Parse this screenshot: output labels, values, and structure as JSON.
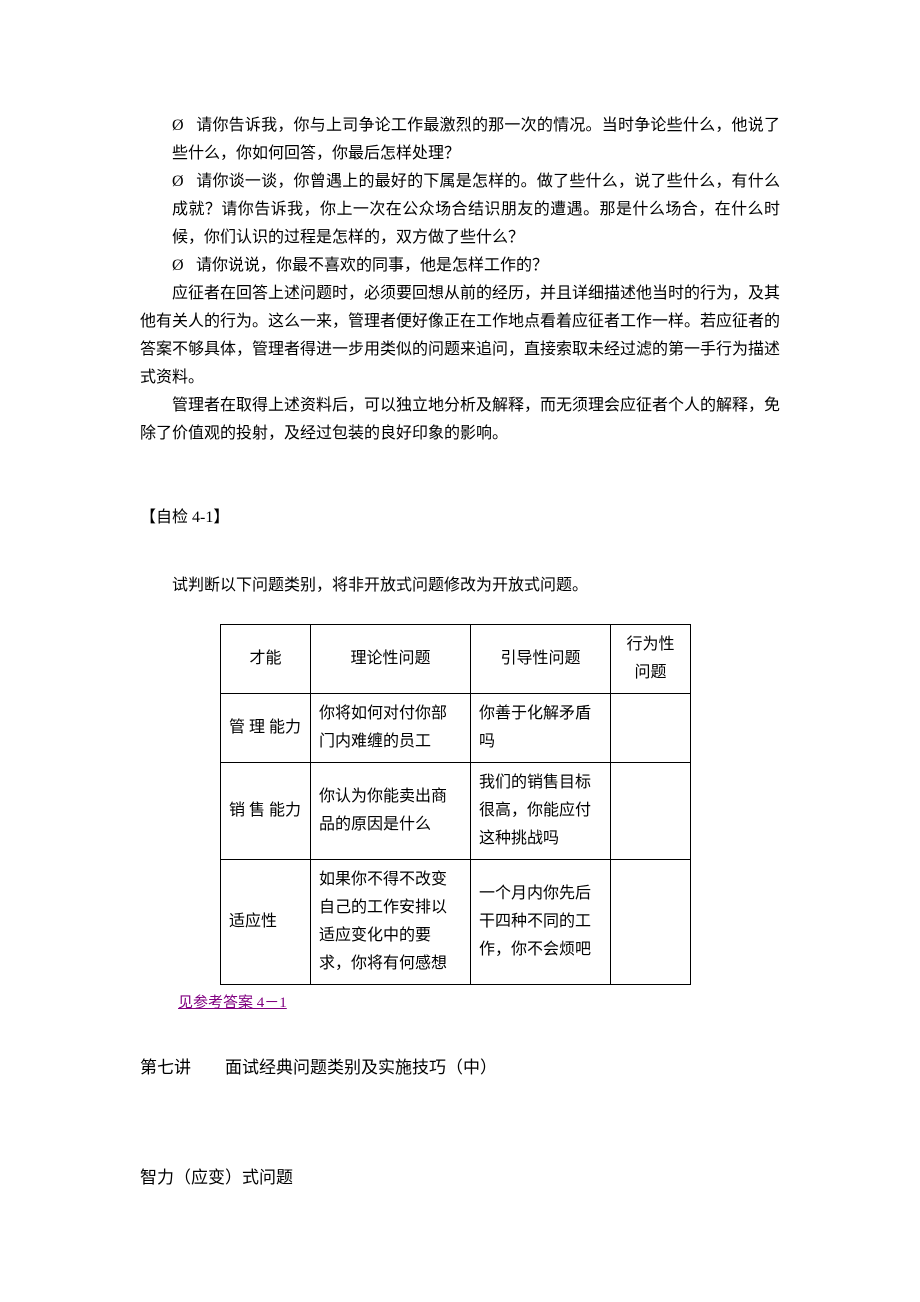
{
  "empty_symbol": "Ø",
  "bullets": {
    "b1": "请你告诉我，你与上司争论工作最激烈的那一次的情况。当时争论些什么，他说了些什么，你如何回答，你最后怎样处理？",
    "b2": "请你谈一谈，你曾遇上的最好的下属是怎样的。做了些什么，说了些什么，有什么成就？请你告诉我，你上一次在公众场合结识朋友的遭遇。那是什么场合，在什么时候，你们认识的过程是怎样的，双方做了些什么？",
    "b3": "请你说说，你最不喜欢的同事，他是怎样工作的？"
  },
  "paragraphs": {
    "p1": "应征者在回答上述问题时，必须要回想从前的经历，并且详细描述他当时的行为，及其他有关人的行为。这么一来，管理者便好像正在工作地点看着应征者工作一样。若应征者的答案不够具体，管理者得进一步用类似的问题来追问，直接索取未经过滤的第一手行为描述式资料。",
    "p2": "管理者在取得上述资料后，可以独立地分析及解释，而无须理会应征者个人的解释，免除了价值观的投射，及经过包装的良好印象的影响。"
  },
  "self_check_heading": "【自检 4-1】",
  "instruction": "试判断以下问题类别，将非开放式问题修改为开放式问题。",
  "table": {
    "headers": {
      "ability": "才能",
      "theory": "理论性问题",
      "guide": "引导性问题",
      "behavior": "行为性问题"
    },
    "rows": [
      {
        "ability": "管 理 能力",
        "theory": "你将如何对付你部门内难缠的员工",
        "guide": "你善于化解矛盾吗",
        "behavior": ""
      },
      {
        "ability": "销 售 能力",
        "theory": "你认为你能卖出商品的原因是什么",
        "guide": "我们的销售目标很高，你能应付这种挑战吗",
        "behavior": ""
      },
      {
        "ability": "适应性",
        "theory": "如果你不得不改变自己的工作安排以适应变化中的要求，你将有何感想",
        "guide": "一个月内你先后干四种不同的工作，你不会烦吧",
        "behavior": ""
      }
    ]
  },
  "answer_link_text": "见参考答案 4－1",
  "lecture_heading": "第七讲　　面试经典问题类别及实施技巧（中）",
  "lecture_subheading": "智力（应变）式问题"
}
